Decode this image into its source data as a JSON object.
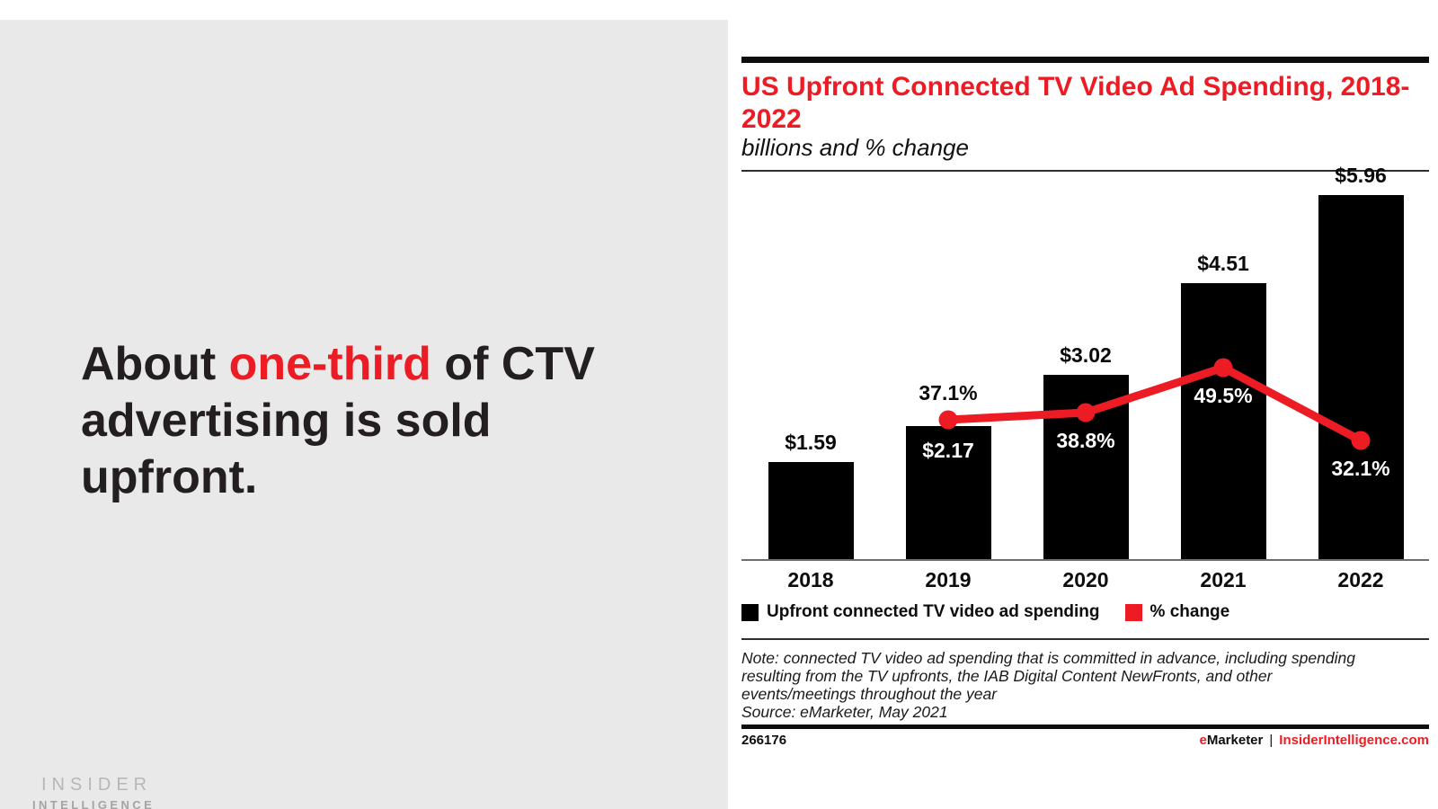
{
  "accent_color": "#ed1c24",
  "left_panel": {
    "headline": {
      "line1_pre": "About ",
      "line1_highlight": "one-third",
      "line1_post": " of CTV",
      "line2": "advertising is sold",
      "line3": "upfront."
    },
    "logo": {
      "line1": "INSIDER",
      "line2": "INTELLIGENCE"
    }
  },
  "chart_panel": {
    "title": "US Upfront Connected TV Video Ad Spending, 2018-2022",
    "subtitle": "billions and % change",
    "legend": [
      {
        "label": "Upfront connected TV video ad spending",
        "color": "#000000"
      },
      {
        "label": "% change",
        "color": "#ed1c24"
      }
    ],
    "note_lines": [
      "Note: connected TV video ad spending that is committed in advance, including spending",
      "resulting from the TV upfronts, the IAB Digital Content NewFronts, and other",
      "events/meetings throughout the year"
    ],
    "source": "Source: eMarketer, May 2021",
    "footer": {
      "id": "266176",
      "brand_e": "e",
      "brand_rest": "Marketer",
      "separator": "|",
      "site": "InsiderIntelligence.com"
    }
  },
  "chart_data": {
    "type": "bar",
    "title": "US Upfront Connected TV Video Ad Spending, 2018-2022",
    "subtitle": "billions and % change",
    "categories": [
      "2018",
      "2019",
      "2020",
      "2021",
      "2022"
    ],
    "series": [
      {
        "name": "Upfront connected TV video ad spending",
        "type": "bar",
        "unit": "USD billions",
        "color": "#000000",
        "values": [
          1.59,
          2.17,
          3.02,
          4.51,
          5.96
        ],
        "labels": [
          "$1.59",
          "$2.17",
          "$3.02",
          "$4.51",
          "$5.96"
        ],
        "label_placement": [
          "above",
          "inside",
          "above",
          "above",
          "above"
        ]
      },
      {
        "name": "% change",
        "type": "line",
        "unit": "percent",
        "color": "#ed1c24",
        "values": [
          null,
          37.1,
          38.8,
          49.5,
          32.1
        ],
        "labels": [
          null,
          "37.1%",
          "38.8%",
          "49.5%",
          "32.1%"
        ],
        "label_placement": [
          null,
          "above",
          "below",
          "below",
          "below"
        ]
      }
    ],
    "ylim": [
      0,
      6.35
    ],
    "grid": false,
    "legend_position": "bottom"
  }
}
